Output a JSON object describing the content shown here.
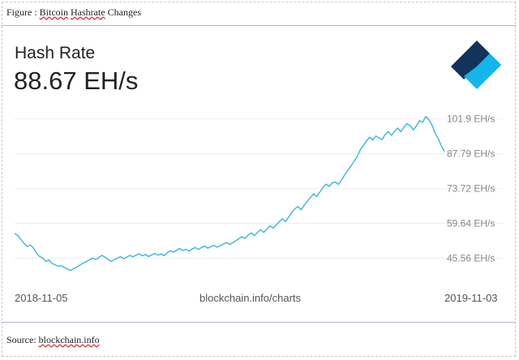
{
  "figure_caption": {
    "prefix": "Figure : ",
    "w1": "Bitcoin",
    "sp1": " ",
    "w2": "Hashrate",
    "rest": " Changes"
  },
  "source": {
    "prefix": "Source: ",
    "site": "blockchain.info"
  },
  "metric": {
    "name": "Hash Rate",
    "value": "88.67 EH/s"
  },
  "footer": {
    "start": "2018-11-05",
    "site": "blockchain.info/charts",
    "end": "2019-11-03"
  },
  "colors": {
    "line": "#3ab5e0",
    "grid": "#eeeeee",
    "logo_dark": "#12335a",
    "logo_blue": "#2a4fd6",
    "logo_light": "#13b5ea"
  },
  "chart_data": {
    "type": "line",
    "title": "Hash Rate",
    "x_start": "2018-11-05",
    "x_end": "2019-11-03",
    "ylim": [
      38.5,
      108
    ],
    "y_ticks": [
      45.56,
      59.64,
      73.72,
      87.79,
      101.9
    ],
    "y_tick_labels": [
      "45.56 EH/s",
      "59.64 EH/s",
      "73.72 EH/s",
      "87.79 EH/s",
      "101.9 EH/s"
    ],
    "grid": true,
    "series": [
      {
        "values": [
          55.5,
          54.8,
          53.2,
          51.6,
          50.3,
          50.9,
          49.8,
          47.6,
          46.3,
          45.6,
          44.3,
          44.9,
          43.5,
          42.9,
          42.3,
          42.5,
          41.8,
          41.2,
          40.6,
          41.4,
          42.0,
          42.8,
          43.6,
          44.2,
          44.9,
          45.6,
          45.0,
          45.8,
          46.7,
          46.0,
          45.1,
          44.3,
          44.9,
          45.6,
          46.2,
          45.4,
          46.0,
          46.7,
          46.1,
          46.8,
          47.4,
          46.5,
          47.1,
          46.2,
          46.9,
          47.5,
          46.8,
          47.3,
          46.6,
          47.8,
          48.6,
          48.0,
          48.8,
          49.5,
          48.7,
          49.2,
          48.5,
          49.3,
          49.9,
          49.1,
          49.8,
          50.5,
          49.6,
          50.2,
          50.8,
          50.0,
          50.6,
          51.2,
          51.9,
          51.1,
          51.8,
          52.6,
          53.4,
          54.3,
          53.5,
          54.9,
          55.8,
          54.7,
          56.0,
          57.1,
          56.0,
          57.3,
          58.6,
          57.7,
          59.0,
          60.3,
          61.5,
          60.4,
          62.2,
          64.0,
          65.6,
          66.4,
          65.2,
          67.0,
          68.6,
          70.1,
          71.6,
          70.5,
          72.3,
          74.1,
          75.5,
          74.6,
          76.0,
          76.4,
          75.4,
          77.2,
          79.3,
          81.1,
          82.9,
          84.7,
          86.7,
          89.4,
          91.2,
          93.0,
          94.5,
          93.3,
          95.0,
          94.2,
          93.5,
          95.6,
          96.8,
          95.2,
          96.9,
          98.2,
          96.7,
          98.5,
          100.0,
          99.1,
          97.4,
          99.0,
          101.2,
          100.5,
          102.9,
          101.6,
          99.5,
          96.2,
          94.0,
          91.0,
          88.7
        ]
      }
    ]
  }
}
